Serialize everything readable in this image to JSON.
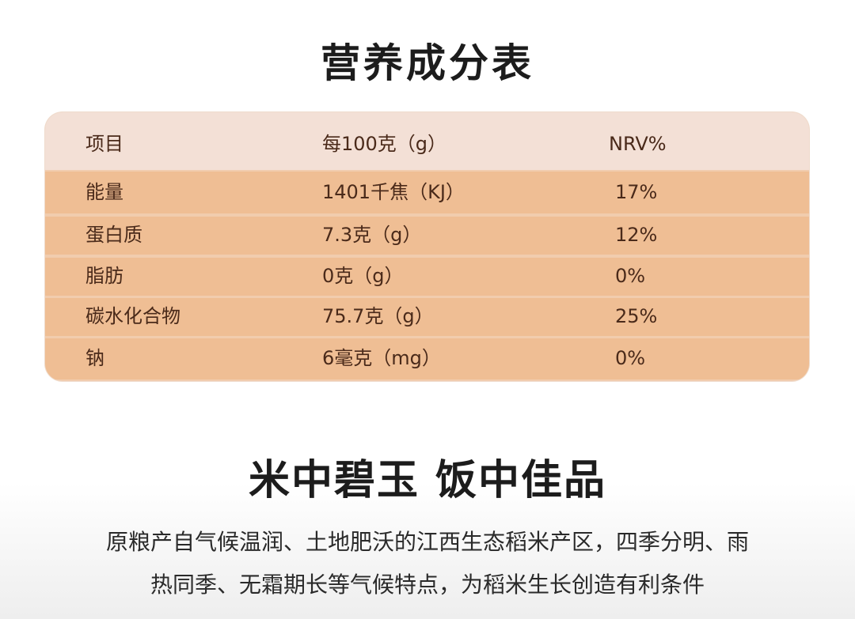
{
  "title": "营养成分表",
  "table": {
    "headers": [
      "项目",
      "每100克（g）",
      "NRV%"
    ],
    "rows": [
      [
        "能量",
        "1401千焦（KJ）",
        "17%"
      ],
      [
        "蛋白质",
        "7.3克（g）",
        "12%"
      ],
      [
        "脂肪",
        "0克（g）",
        "0%"
      ],
      [
        "碳水化合物",
        "75.7克（g）",
        "25%"
      ],
      [
        "钠",
        "6毫克（mg）",
        "0%"
      ]
    ]
  },
  "slogan": "米中碧玉 饭中佳品",
  "description": {
    "line1": "原粮产自气候温润、土地肥沃的江西生态稻米产区，四季分明、雨",
    "line2": "热同季、无霜期长等气候特点，为稻米生长创造有利条件"
  }
}
